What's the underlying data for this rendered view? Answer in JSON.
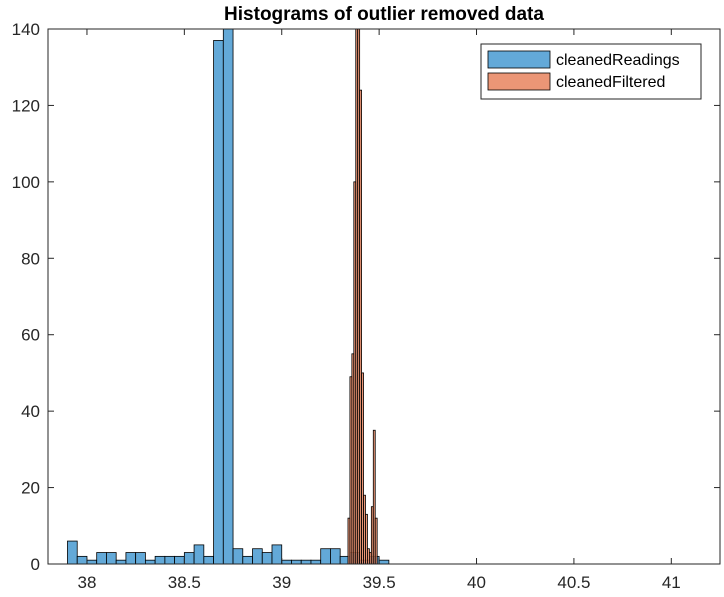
{
  "chart_data": {
    "type": "histogram",
    "title": "Histograms of outlier removed data",
    "xlabel": "",
    "ylabel": "",
    "xlim": [
      37.8,
      41.25
    ],
    "ylim": [
      0,
      140
    ],
    "xticks": [
      38,
      38.5,
      39,
      39.5,
      40,
      40.5,
      41
    ],
    "xtick_labels": [
      "38",
      "38.5",
      "39",
      "39.5",
      "40",
      "40.5",
      "41"
    ],
    "yticks": [
      0,
      20,
      40,
      60,
      80,
      100,
      120,
      140
    ],
    "ytick_labels": [
      "0",
      "20",
      "40",
      "60",
      "80",
      "100",
      "120",
      "140"
    ],
    "grid": false,
    "legend": {
      "placement": "top-right"
    },
    "series": [
      {
        "name": "cleanedReadings",
        "color": "#5ba4d6",
        "opacity": 0.95,
        "bin_width": 0.05,
        "bins": [
          [
            37.9,
            6
          ],
          [
            37.95,
            2
          ],
          [
            38.0,
            1
          ],
          [
            38.05,
            3
          ],
          [
            38.1,
            3
          ],
          [
            38.15,
            1
          ],
          [
            38.2,
            3
          ],
          [
            38.25,
            3
          ],
          [
            38.3,
            1
          ],
          [
            38.35,
            2
          ],
          [
            38.4,
            2
          ],
          [
            38.45,
            2
          ],
          [
            38.5,
            3
          ],
          [
            38.55,
            5
          ],
          [
            38.6,
            2
          ],
          [
            38.65,
            137
          ],
          [
            38.7,
            140
          ],
          [
            38.75,
            4
          ],
          [
            38.8,
            2
          ],
          [
            38.85,
            4
          ],
          [
            38.9,
            3
          ],
          [
            38.95,
            5
          ],
          [
            39.0,
            1
          ],
          [
            39.05,
            1
          ],
          [
            39.1,
            1
          ],
          [
            39.15,
            1
          ],
          [
            39.2,
            4
          ],
          [
            39.25,
            4
          ],
          [
            39.3,
            2
          ],
          [
            39.35,
            3
          ],
          [
            39.4,
            1
          ],
          [
            39.45,
            2
          ],
          [
            39.5,
            1
          ]
        ]
      },
      {
        "name": "cleanedFiltered",
        "color": "#e8845e",
        "opacity": 0.85,
        "bin_width": 0.01,
        "bins": [
          [
            39.34,
            12
          ],
          [
            39.35,
            49
          ],
          [
            39.36,
            55
          ],
          [
            39.37,
            100
          ],
          [
            39.38,
            140
          ],
          [
            39.39,
            140
          ],
          [
            39.4,
            124
          ],
          [
            39.41,
            50
          ],
          [
            39.42,
            18
          ],
          [
            39.43,
            13
          ],
          [
            39.44,
            4
          ],
          [
            39.45,
            3
          ],
          [
            39.46,
            15
          ],
          [
            39.47,
            35
          ],
          [
            39.48,
            12
          ]
        ]
      }
    ]
  }
}
